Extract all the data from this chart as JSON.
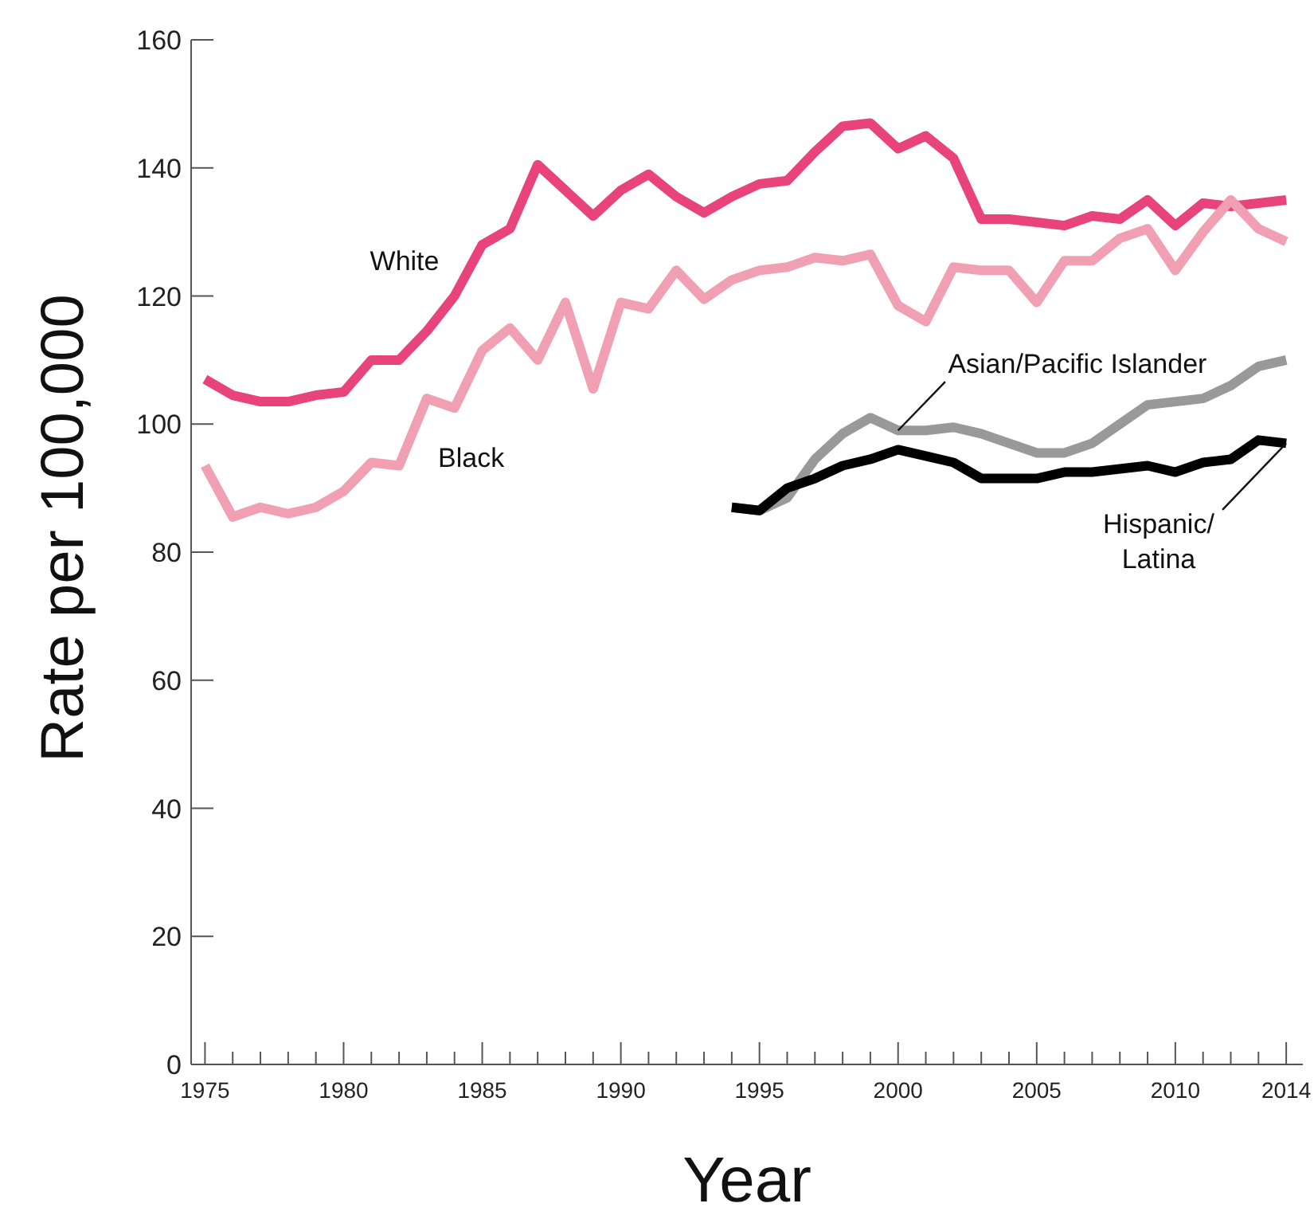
{
  "chart_data": {
    "type": "line",
    "xlabel": "Year",
    "ylabel": "Rate per 100,000",
    "x": [
      1975,
      1976,
      1977,
      1978,
      1979,
      1980,
      1981,
      1982,
      1983,
      1984,
      1985,
      1986,
      1987,
      1988,
      1989,
      1990,
      1991,
      1992,
      1993,
      1994,
      1995,
      1996,
      1997,
      1998,
      1999,
      2000,
      2001,
      2002,
      2003,
      2004,
      2005,
      2006,
      2007,
      2008,
      2009,
      2010,
      2011,
      2012,
      2013,
      2014
    ],
    "series": [
      {
        "name": "White",
        "color": "#e8437a",
        "values": [
          107,
          104.5,
          103.5,
          103.5,
          104.5,
          105,
          110,
          110,
          114.5,
          120,
          128,
          130.5,
          140.5,
          136.5,
          132.5,
          136.5,
          139,
          135.5,
          133,
          135.5,
          137.5,
          138,
          142.5,
          146.5,
          147,
          143,
          145,
          141.5,
          132,
          132,
          131.5,
          131,
          132.5,
          132,
          135,
          131,
          134.5,
          134,
          134.5,
          135
        ]
      },
      {
        "name": "Black",
        "color": "#f0a0b2",
        "values": [
          93.5,
          85.5,
          87,
          86,
          87,
          89.5,
          94,
          93.5,
          104,
          102.5,
          111.5,
          115,
          110,
          119,
          105.5,
          119,
          118,
          124,
          119.5,
          122.5,
          124,
          124.5,
          126,
          125.5,
          126.5,
          118.5,
          116,
          124.5,
          124,
          124,
          119,
          125.5,
          125.5,
          129,
          130.5,
          124,
          130,
          135,
          130.5,
          128.5
        ]
      },
      {
        "name": "Asian/Pacific Islander",
        "color": "#999999",
        "x": [
          1994,
          1995,
          1996,
          1997,
          1998,
          1999,
          2000,
          2001,
          2002,
          2003,
          2004,
          2005,
          2006,
          2007,
          2008,
          2009,
          2010,
          2011,
          2012,
          2013,
          2014
        ],
        "values": [
          87,
          86.5,
          88.5,
          94.5,
          98.5,
          101,
          99,
          99,
          99.5,
          98.5,
          97,
          95.5,
          95.5,
          97,
          100,
          103,
          103.5,
          104,
          106,
          109,
          110
        ]
      },
      {
        "name": "Hispanic/ Latina",
        "color": "#000000",
        "x": [
          1994,
          1995,
          1996,
          1997,
          1998,
          1999,
          2000,
          2001,
          2002,
          2003,
          2004,
          2005,
          2006,
          2007,
          2008,
          2009,
          2010,
          2011,
          2012,
          2013,
          2014
        ],
        "values": [
          87,
          86.5,
          90,
          91.5,
          93.5,
          94.5,
          96,
          95,
          94,
          91.5,
          91.5,
          91.5,
          92.5,
          92.5,
          93,
          93.5,
          92.5,
          94,
          94.5,
          97.5,
          97
        ]
      }
    ],
    "xlim": [
      1974.5,
      2014.6
    ],
    "xticks": [
      1975,
      {
        "value": 1976,
        "label": null
      },
      {
        "value": 1977,
        "label": null
      },
      {
        "value": 1978,
        "label": null
      },
      {
        "value": 1979,
        "label": null
      },
      1980,
      {
        "value": 1981,
        "label": null
      },
      {
        "value": 1982,
        "label": null
      },
      {
        "value": 1983,
        "label": null
      },
      {
        "value": 1984,
        "label": null
      },
      1985,
      {
        "value": 1986,
        "label": null
      },
      {
        "value": 1987,
        "label": null
      },
      {
        "value": 1988,
        "label": null
      },
      {
        "value": 1989,
        "label": null
      },
      1990,
      {
        "value": 1991,
        "label": null
      },
      {
        "value": 1992,
        "label": null
      },
      {
        "value": 1993,
        "label": null
      },
      {
        "value": 1994,
        "label": null
      },
      1995,
      {
        "value": 1996,
        "label": null
      },
      {
        "value": 1997,
        "label": null
      },
      {
        "value": 1998,
        "label": null
      },
      {
        "value": 1999,
        "label": null
      },
      2000,
      {
        "value": 2001,
        "label": null
      },
      {
        "value": 2002,
        "label": null
      },
      {
        "value": 2003,
        "label": null
      },
      {
        "value": 2004,
        "label": null
      },
      2005,
      {
        "value": 2006,
        "label": null
      },
      {
        "value": 2007,
        "label": null
      },
      {
        "value": 2008,
        "label": null
      },
      {
        "value": 2009,
        "label": null
      },
      2010,
      {
        "value": 2011,
        "label": null
      },
      {
        "value": 2012,
        "label": null
      },
      {
        "value": 2013,
        "label": null
      },
      2014
    ],
    "ylim": [
      0,
      160
    ],
    "yticks": [
      0,
      20,
      40,
      60,
      80,
      100,
      120,
      140,
      160
    ],
    "marker": "none",
    "line_style": "solid"
  }
}
